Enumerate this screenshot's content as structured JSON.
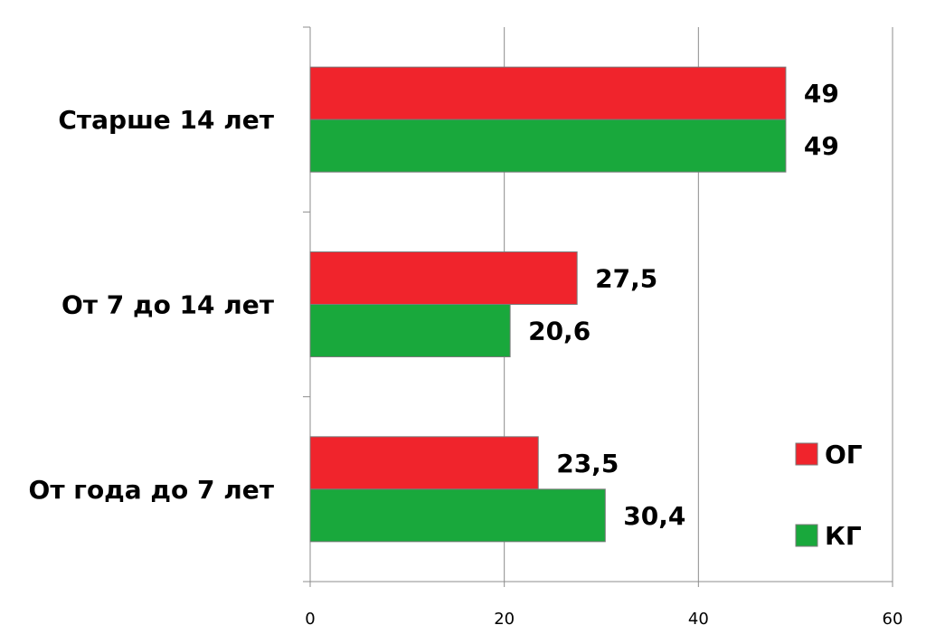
{
  "chart_data": {
    "type": "bar",
    "orientation": "horizontal",
    "categories": [
      "От года до 7 лет",
      "От 7 до 14 лет",
      "Старше 14 лет"
    ],
    "series": [
      {
        "name": "КГ",
        "color": "#19a83c",
        "values": [
          30.4,
          20.6,
          49
        ],
        "labels": [
          "30,4",
          "20,6",
          "49"
        ]
      },
      {
        "name": "ОГ",
        "color": "#f0242c",
        "values": [
          23.5,
          27.5,
          49
        ],
        "labels": [
          "23,5",
          "27,5",
          "49"
        ]
      }
    ],
    "xlim": [
      0,
      60
    ],
    "xticks": [
      0,
      20,
      40,
      60
    ],
    "xtick_labels": [
      "0",
      "20",
      "40",
      "60"
    ],
    "grid": "vertical",
    "legend_placement": "right",
    "title": "",
    "xlabel": "",
    "ylabel": ""
  }
}
